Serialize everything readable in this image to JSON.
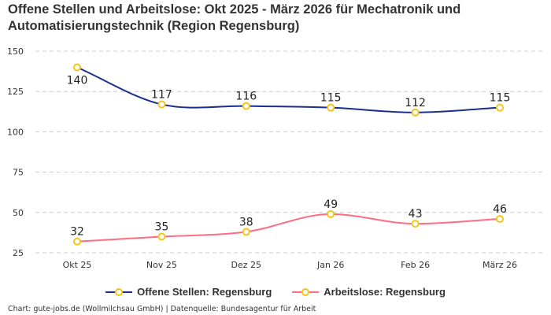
{
  "chart_data": {
    "type": "line",
    "title": "Offene Stellen und Arbeitslose: Okt 2025 - März 2026 für Mechatronik und Automatisierungstechnik (Region Regensburg)",
    "categories": [
      "Okt 25",
      "Nov 25",
      "Dez 25",
      "Jan 26",
      "Feb 26",
      "März 26"
    ],
    "yticks": [
      25,
      50,
      75,
      100,
      125,
      150
    ],
    "ylim": [
      25,
      150
    ],
    "grid": true,
    "legend_position": "bottom",
    "series": [
      {
        "name": "Offene Stellen: Regensburg",
        "values": [
          140,
          117,
          116,
          115,
          112,
          115
        ],
        "color": "#1a2f8f"
      },
      {
        "name": "Arbeitslose: Regensburg",
        "values": [
          32,
          35,
          38,
          49,
          43,
          46
        ],
        "color": "#ff6b81"
      }
    ],
    "marker_color": "#f5c518"
  },
  "footer": "Chart: gute-jobs.de (Wollmilchsau GmbH) | Datenquelle: Bundesagentur für Arbeit"
}
